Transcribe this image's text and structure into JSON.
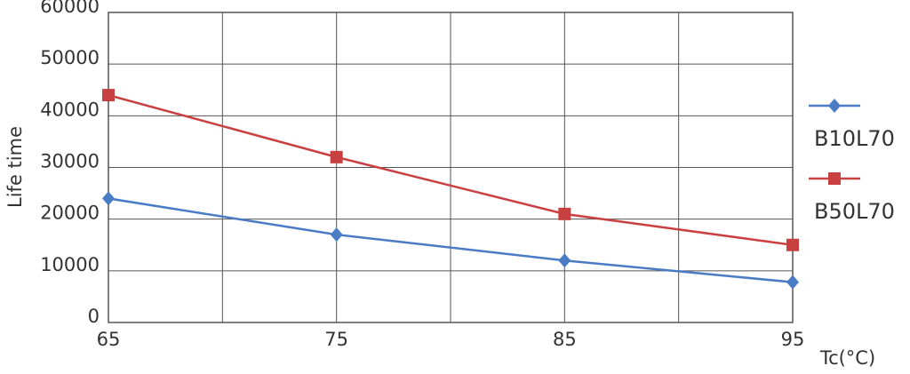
{
  "chart_data": {
    "type": "line",
    "x_label": "Tc(°C)",
    "y_label": "Life time",
    "x": [
      65,
      75,
      85,
      95
    ],
    "series": [
      {
        "name": "B10L70",
        "color": "#4a7cc6",
        "marker": "diamond",
        "values": [
          24000,
          17000,
          12000,
          7800
        ]
      },
      {
        "name": "B50L70",
        "color": "#c8403f",
        "marker": "square",
        "values": [
          44000,
          32000,
          21000,
          15000
        ]
      }
    ],
    "xlim": [
      65,
      95
    ],
    "xticks": [
      65,
      75,
      85,
      95
    ],
    "xminorticks": [
      70,
      80,
      90
    ],
    "ylim": [
      0,
      60000
    ],
    "yticks": [
      0,
      10000,
      20000,
      30000,
      40000,
      50000,
      60000
    ],
    "grid": true,
    "legend": "right"
  }
}
